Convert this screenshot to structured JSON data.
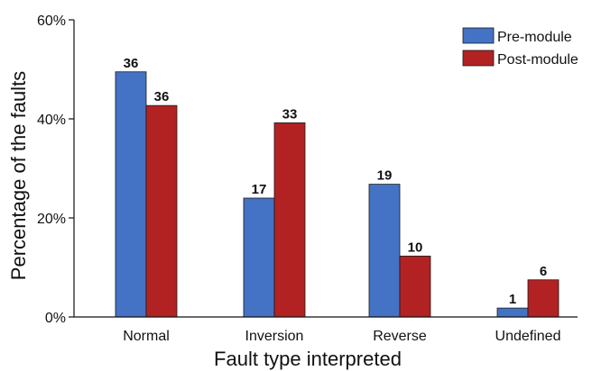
{
  "chart_data": {
    "type": "bar",
    "title": "",
    "xlabel": "Fault type interpreted",
    "ylabel": "Percentage of the faults",
    "categories": [
      "Normal",
      "Inversion",
      "Reverse",
      "Undefined"
    ],
    "ylim": [
      0,
      60
    ],
    "y_ticks": [
      0,
      20,
      40,
      60
    ],
    "y_tick_labels": [
      "0%",
      "20%",
      "40%",
      "60%"
    ],
    "grid": false,
    "legend_position": "top-right",
    "series": [
      {
        "name": "Pre-module",
        "color": "#4472C4",
        "values": [
          49.5,
          24,
          26.8,
          1.8
        ],
        "labels": [
          "36",
          "17",
          "19",
          "1"
        ]
      },
      {
        "name": "Post-module",
        "color": "#B22222",
        "values": [
          42.7,
          39.2,
          12.3,
          7.5
        ],
        "labels": [
          "36",
          "33",
          "10",
          "6"
        ]
      }
    ]
  }
}
